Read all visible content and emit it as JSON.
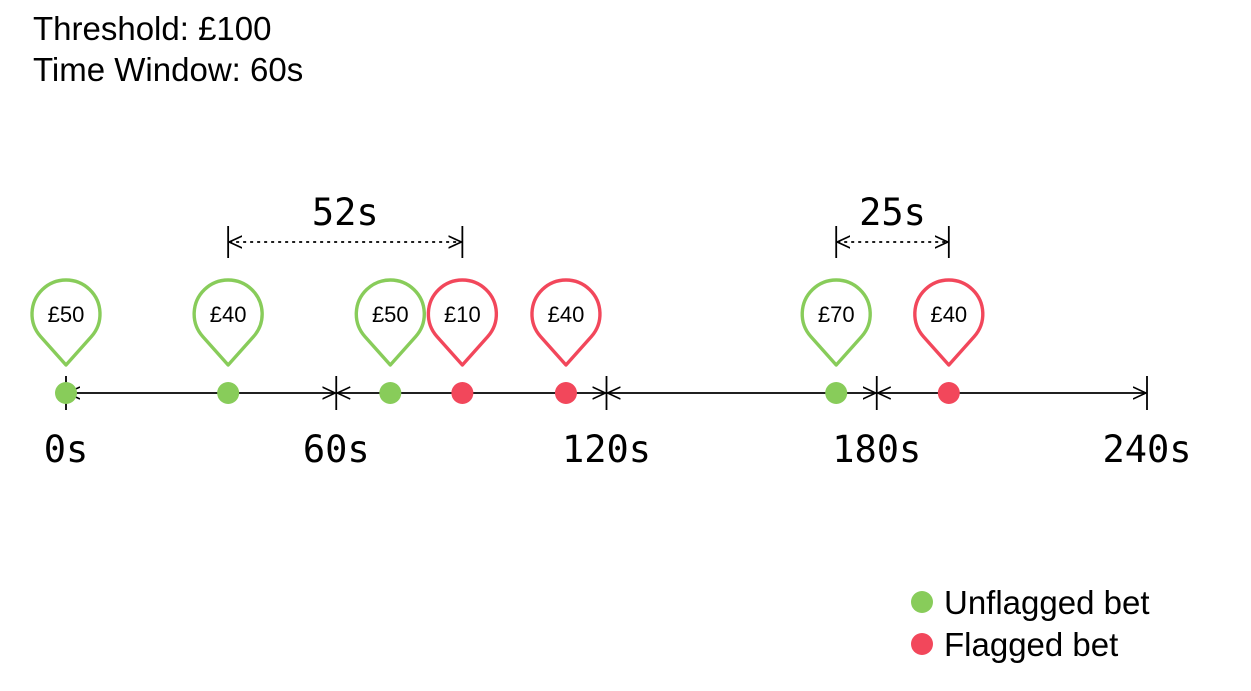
{
  "header": {
    "threshold_text": "Threshold: £100",
    "window_text": "Time Window: 60s"
  },
  "colors": {
    "unflagged": "#88cc5a",
    "flagged": "#f2475b",
    "line": "#000000"
  },
  "axis": {
    "ticks": [
      {
        "label": "0s",
        "t": 0
      },
      {
        "label": "60s",
        "t": 60
      },
      {
        "label": "120s",
        "t": 120
      },
      {
        "label": "180s",
        "t": 180
      },
      {
        "label": "240s",
        "t": 240
      }
    ]
  },
  "bets": [
    {
      "amount": "£50",
      "t": 0,
      "flagged": false
    },
    {
      "amount": "£40",
      "t": 36,
      "flagged": false
    },
    {
      "amount": "£50",
      "t": 72,
      "flagged": false
    },
    {
      "amount": "£10",
      "t": 88,
      "flagged": true
    },
    {
      "amount": "£40",
      "t": 111,
      "flagged": true
    },
    {
      "amount": "£70",
      "t": 171,
      "flagged": false
    },
    {
      "amount": "£40",
      "t": 196,
      "flagged": true
    }
  ],
  "intervals": [
    {
      "label": "52s",
      "from": 36,
      "to": 88
    },
    {
      "label": "25s",
      "from": 171,
      "to": 196
    }
  ],
  "legend": {
    "unflagged_label": "Unflagged bet",
    "flagged_label": "Flagged bet"
  }
}
